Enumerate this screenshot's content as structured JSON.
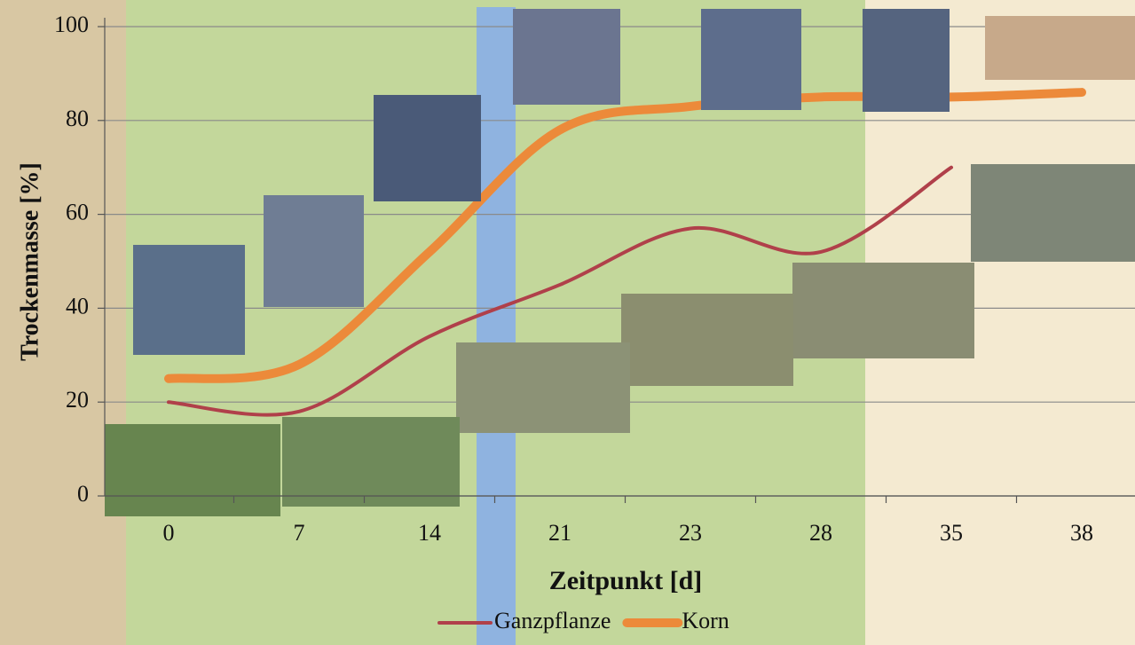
{
  "chart_data": {
    "type": "line",
    "x_label": "Zeitpunkt [d]",
    "y_label": "Trockenmasse [%]",
    "categories": [
      "0",
      "7",
      "14",
      "21",
      "23",
      "28",
      "35",
      "38"
    ],
    "series": [
      {
        "name": "Ganzpflanze",
        "color": "#b0404a",
        "width": 4,
        "values": [
          20,
          18,
          34,
          45,
          57,
          52,
          70,
          null
        ]
      },
      {
        "name": "Korn",
        "color": "#ec8a3a",
        "width": 10,
        "values": [
          25,
          28,
          52,
          78,
          83,
          85,
          85,
          86
        ]
      }
    ],
    "ylim": [
      0,
      100
    ],
    "yticks": [
      0,
      20,
      40,
      60,
      80,
      100
    ],
    "grid": true
  }
}
